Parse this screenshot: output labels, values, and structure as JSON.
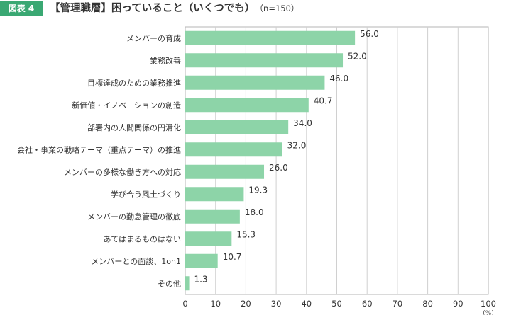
{
  "figure_label": "図表 4",
  "title": "【管理職層】困っていること（いくつでも）",
  "subtitle": "（n=150）",
  "chart_data": {
    "type": "bar",
    "orientation": "horizontal",
    "categories": [
      "メンバーの育成",
      "業務改善",
      "目標達成のための業務推進",
      "新価値・イノベーションの創造",
      "部署内の人間関係の円滑化",
      "会社・事業の戦略テーマ（重点テーマ）の推進",
      "メンバーの多様な働き方への対応",
      "学び合う風土づくり",
      "メンバーの勤怠管理の徹底",
      "あてはまるものはない",
      "メンバーとの面談、1on1",
      "その他"
    ],
    "values": [
      56.0,
      52.0,
      46.0,
      40.7,
      34.0,
      32.0,
      26.0,
      19.3,
      18.0,
      15.3,
      10.7,
      1.3
    ],
    "value_labels": [
      "56.0",
      "52.0",
      "46.0",
      "40.7",
      "34.0",
      "32.0",
      "26.0",
      "19.3",
      "18.0",
      "15.3",
      "10.7",
      "1.3"
    ],
    "xlim": [
      0,
      100
    ],
    "xticks": [
      0,
      10,
      20,
      30,
      40,
      50,
      60,
      70,
      80,
      90,
      100
    ],
    "unit_label": "(%)",
    "grid": true,
    "bar_color": "#8dd4a8",
    "accent_color": "#3aa873"
  }
}
